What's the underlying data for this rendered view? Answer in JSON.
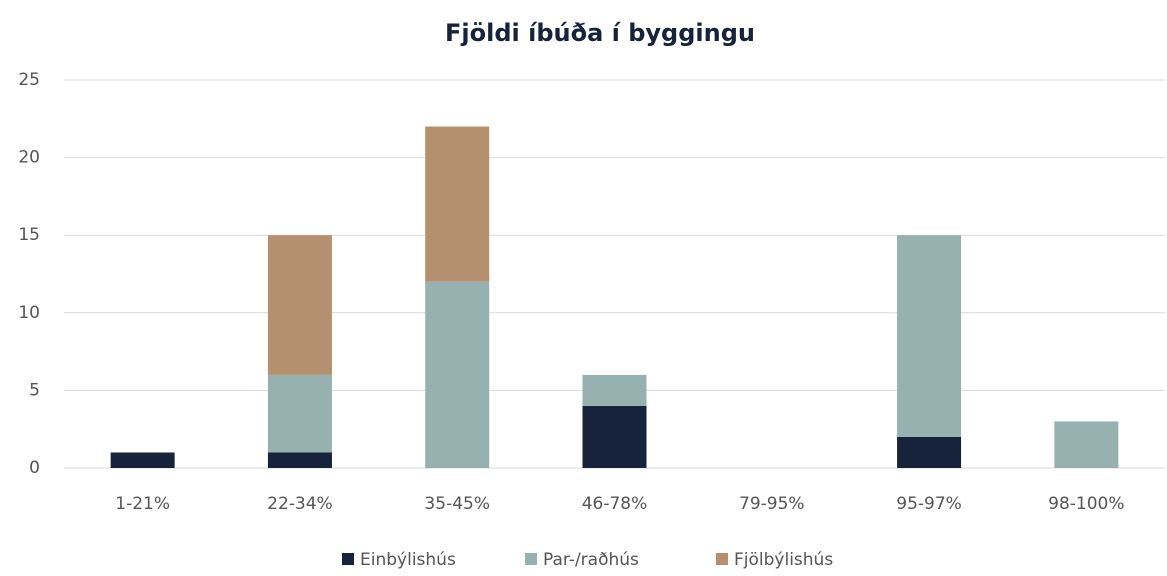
{
  "chart_data": {
    "type": "stacked_bar",
    "title": "Fjöldi íbúða í byggingu",
    "categories": [
      "1-21%",
      "22-34%",
      "35-45%",
      "46-78%",
      "79-95%",
      "95-97%",
      "98-100%"
    ],
    "series": [
      {
        "name": "Einbýlishús",
        "color": "#16233b",
        "values": [
          1,
          1,
          0,
          4,
          0,
          2,
          0
        ]
      },
      {
        "name": "Par-/raðhús",
        "color": "#97b1b0",
        "values": [
          0,
          5,
          12,
          2,
          0,
          13,
          3
        ]
      },
      {
        "name": "Fjölbýlishús",
        "color": "#b4906e",
        "values": [
          0,
          9,
          10,
          0,
          0,
          0,
          0
        ]
      }
    ],
    "ylim": [
      0,
      25
    ],
    "yticks": [
      0,
      5,
      10,
      15,
      20,
      25
    ],
    "grid": true,
    "legend": "bottom"
  }
}
